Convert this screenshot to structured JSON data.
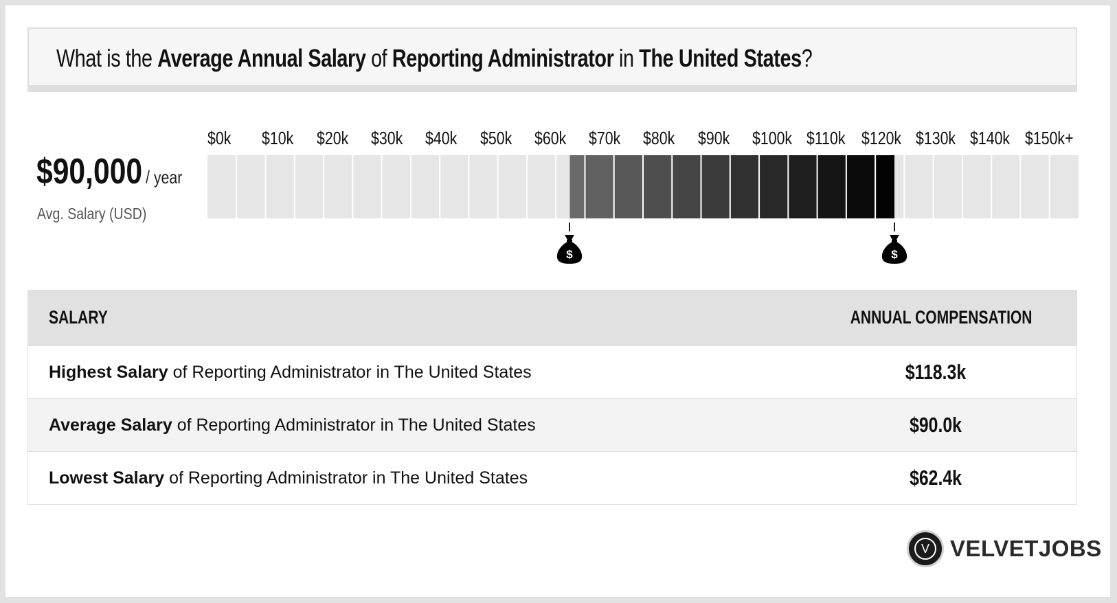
{
  "title": {
    "p1": "What is the ",
    "b1": "Average Annual Salary",
    "p2": " of ",
    "b2": "Reporting Administrator",
    "p3": " in ",
    "b3": "The United States",
    "p4": "?"
  },
  "average": {
    "amount": "$90,000",
    "unit": "/ year",
    "label": "Avg. Salary (USD)"
  },
  "chart_data": {
    "type": "bar",
    "tick_labels": [
      "$0k",
      "$10k",
      "$20k",
      "$30k",
      "$40k",
      "$50k",
      "$60k",
      "$70k",
      "$80k",
      "$90k",
      "$100k",
      "$110k",
      "$120k",
      "$130k",
      "$140k",
      "$150k+"
    ],
    "range": [
      0,
      150
    ],
    "unit": "k USD",
    "low": 62.4,
    "average": 90.0,
    "high": 118.3,
    "colors": {
      "empty": "#e6e6e6",
      "low_fill": "#6b6b6b",
      "high_fill": "#000000",
      "divider": "#ffffff"
    }
  },
  "markers": {
    "low_icon": "money-bag-icon",
    "high_icon": "money-bag-icon",
    "symbol": "$"
  },
  "table": {
    "headers": [
      "SALARY",
      "ANNUAL COMPENSATION"
    ],
    "rows": [
      {
        "bold": "Highest Salary",
        "rest": " of Reporting Administrator in The United States",
        "value": "$118.3k"
      },
      {
        "bold": "Average Salary",
        "rest": " of Reporting Administrator in The United States",
        "value": "$90.0k"
      },
      {
        "bold": "Lowest Salary",
        "rest": " of Reporting Administrator in The United States",
        "value": "$62.4k"
      }
    ]
  },
  "logo": {
    "letter": "V",
    "name": "VELVETJOBS"
  }
}
